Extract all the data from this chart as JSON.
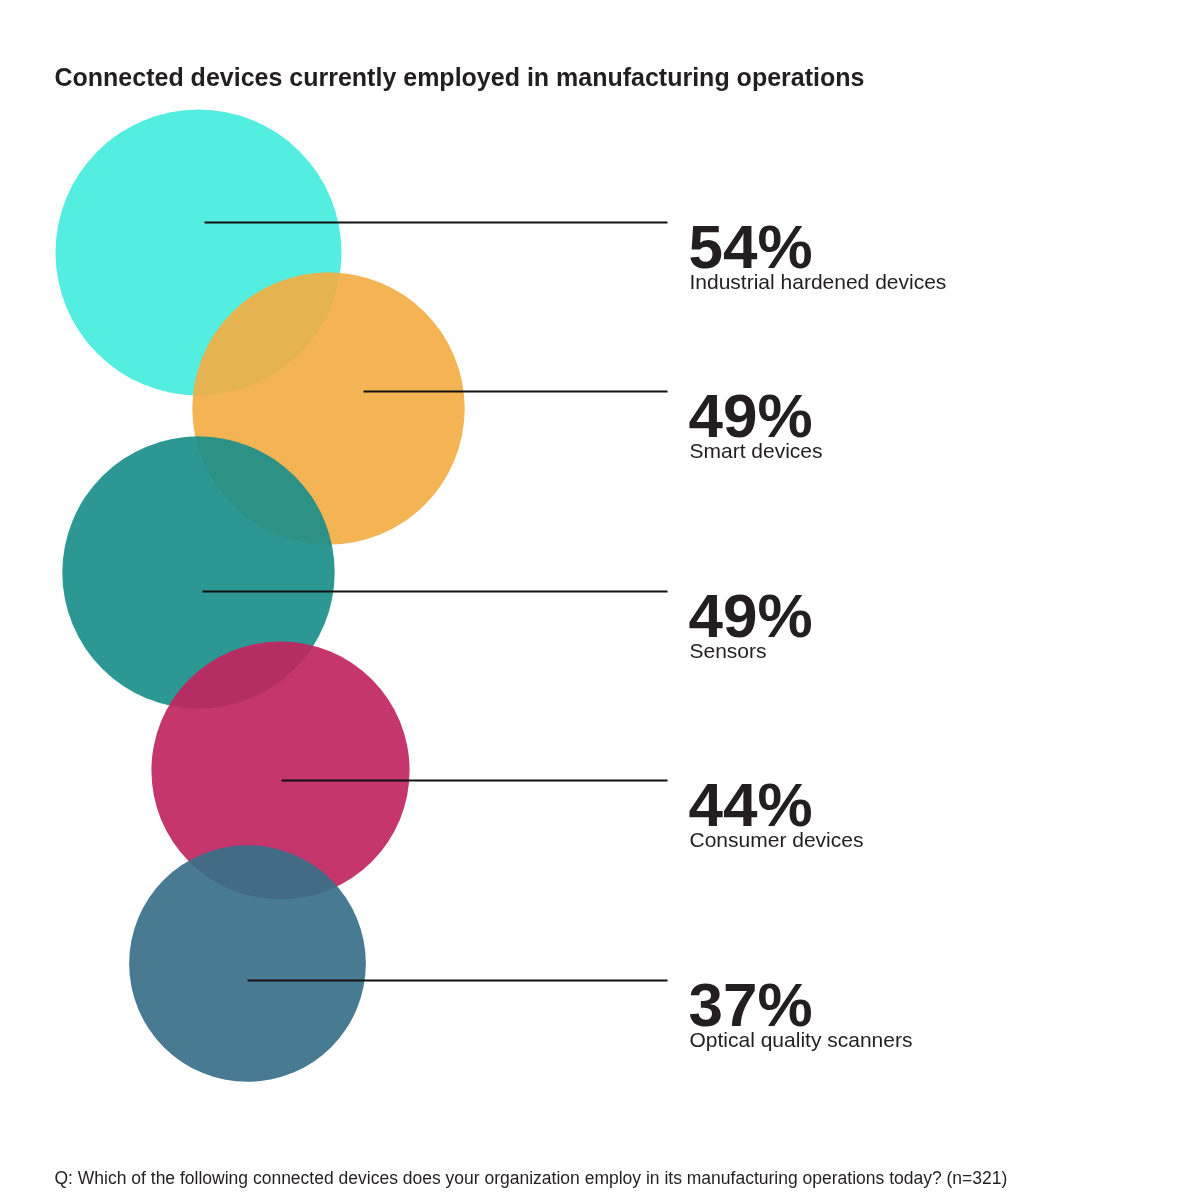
{
  "chart_data": {
    "type": "other",
    "title": "Connected devices currently employed in manufacturing operations",
    "categories": [
      "Industrial hardened devices",
      "Smart devices",
      "Sensors",
      "Consumer devices",
      "Optical quality scanners"
    ],
    "values": [
      54,
      49,
      49,
      44,
      37
    ],
    "value_labels": [
      "54%",
      "49%",
      "49%",
      "44%",
      "37%"
    ],
    "colors": [
      "#45eddd",
      "#f3ae44",
      "#1b8f8a",
      "#c02560",
      "#387089"
    ],
    "annotations": [
      "Q: Which of the following connected devices does your organization employ in its manufacturing operations today? (n=321)"
    ]
  }
}
